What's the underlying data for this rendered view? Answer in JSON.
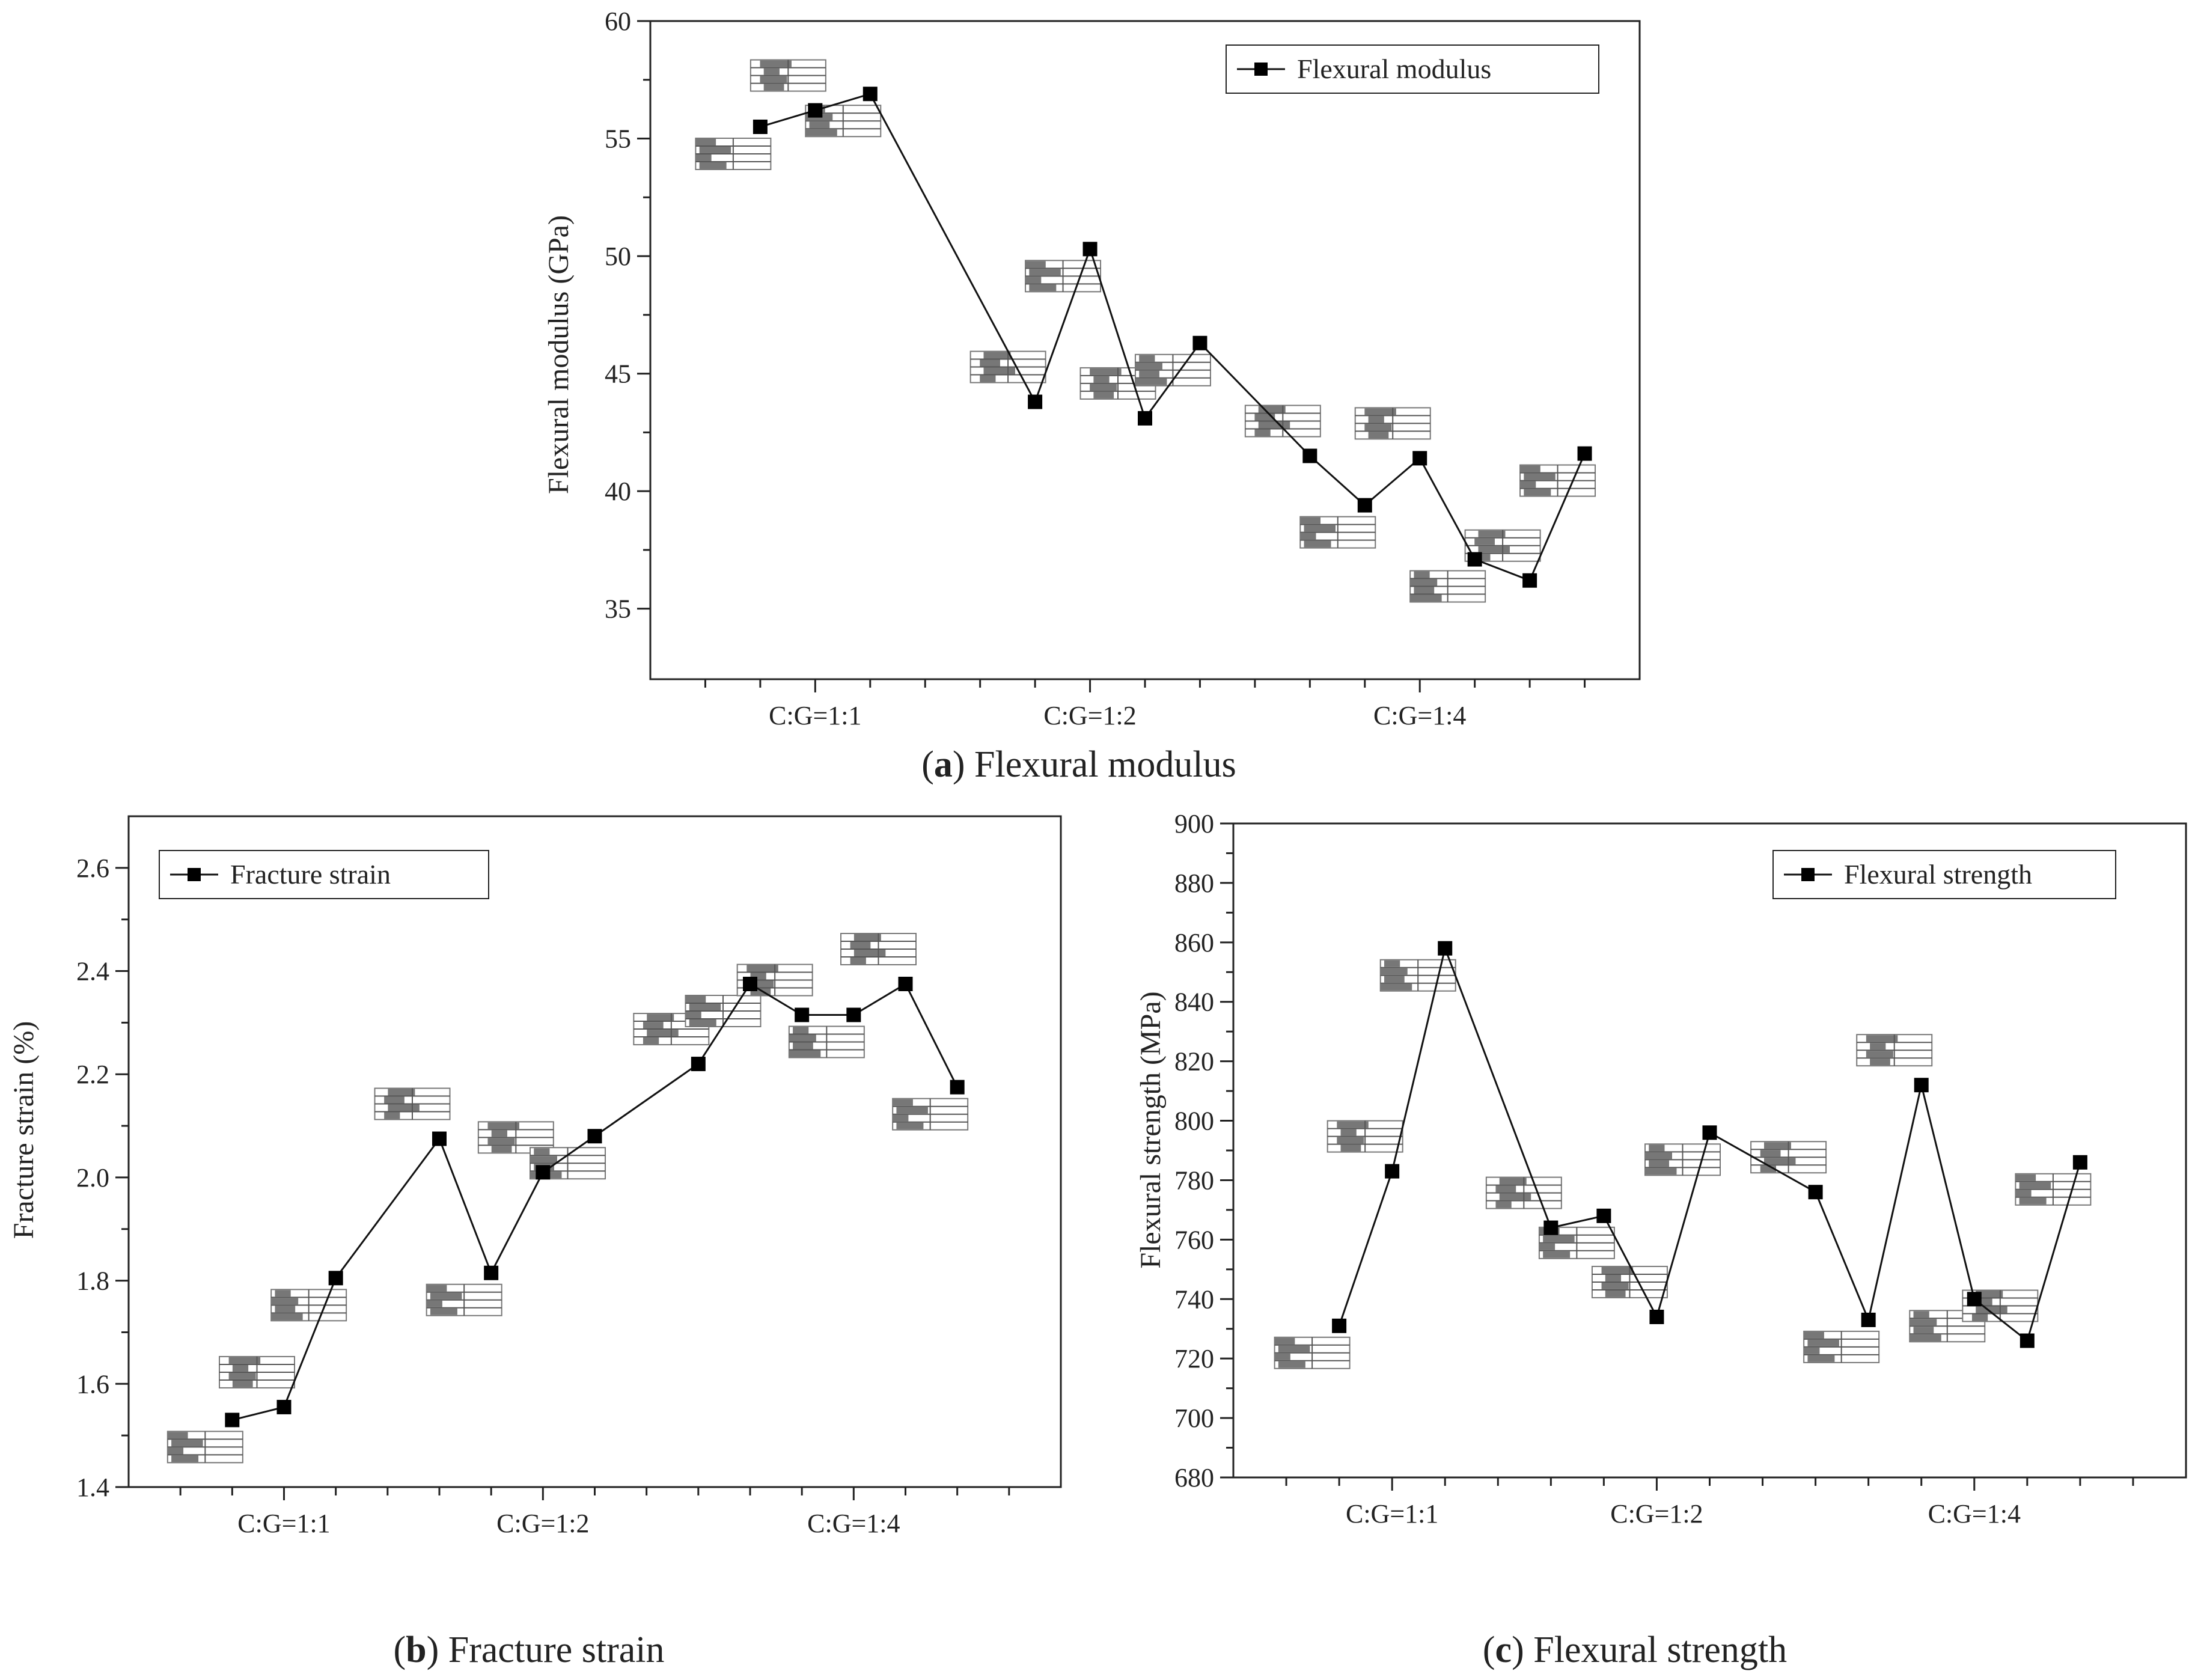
{
  "chart_data": [
    {
      "id": "a",
      "type": "line",
      "title": "Flexural modulus",
      "caption_letter": "a",
      "xlabel": "",
      "ylabel": "Flexural modulus (GPa)",
      "legend": "Flexural modulus",
      "legend_position": "top-right",
      "ylim": [
        32,
        60
      ],
      "yticks": [
        35,
        40,
        45,
        50,
        55,
        60
      ],
      "categories": [
        "C:G=1:1",
        "C:G=1:2",
        "C:G=1:4"
      ],
      "category_positions": [
        3,
        8,
        14
      ],
      "x": [
        2,
        3,
        4,
        7,
        8,
        9,
        10,
        12,
        13,
        14,
        15,
        16,
        17
      ],
      "values": [
        55.5,
        56.2,
        56.9,
        43.8,
        50.3,
        43.1,
        46.3,
        41.5,
        39.4,
        41.4,
        37.1,
        36.2,
        41.6
      ],
      "xlim": [
        0,
        18
      ]
    },
    {
      "id": "b",
      "type": "line",
      "title": "Fracture strain",
      "caption_letter": "b",
      "xlabel": "",
      "ylabel": "Fracture strain (%)",
      "legend": "Fracture strain",
      "legend_position": "top-left",
      "ylim": [
        1.4,
        2.7
      ],
      "yticks": [
        1.4,
        1.6,
        1.8,
        2.0,
        2.2,
        2.4,
        2.6
      ],
      "categories": [
        "C:G=1:1",
        "C:G=1:2",
        "C:G=1:4"
      ],
      "category_positions": [
        3,
        8,
        14
      ],
      "x": [
        2,
        3,
        4,
        6,
        7,
        8,
        9,
        11,
        12,
        13,
        14,
        15,
        16
      ],
      "values": [
        1.53,
        1.555,
        1.805,
        2.075,
        1.815,
        2.01,
        2.08,
        2.22,
        2.375,
        2.315,
        2.315,
        2.375,
        2.175
      ],
      "xlim": [
        0,
        18
      ]
    },
    {
      "id": "c",
      "type": "line",
      "title": "Flexural strength",
      "caption_letter": "c",
      "xlabel": "",
      "ylabel": "Flexural strength (MPa)",
      "legend": "Flexural strength",
      "legend_position": "top-right",
      "ylim": [
        680,
        900
      ],
      "yticks": [
        680,
        700,
        720,
        740,
        760,
        780,
        800,
        820,
        840,
        860,
        880,
        900
      ],
      "categories": [
        "C:G=1:1",
        "C:G=1:2",
        "C:G=1:4"
      ],
      "category_positions": [
        3,
        8,
        14
      ],
      "x": [
        2,
        3,
        4,
        6,
        7,
        8,
        9,
        11,
        12,
        13,
        14,
        15,
        16
      ],
      "values": [
        731,
        783,
        858,
        764,
        768,
        734,
        796,
        776,
        733,
        812,
        740,
        726,
        786
      ],
      "xlim": [
        0,
        18
      ]
    }
  ]
}
